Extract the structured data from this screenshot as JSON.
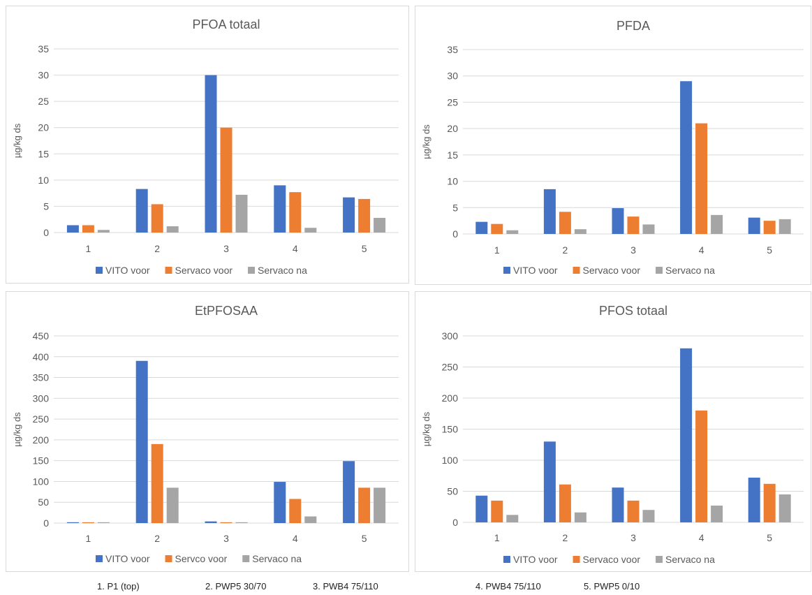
{
  "colors": {
    "vito": "#4472C4",
    "servaco_voor": "#ED7D31",
    "servaco_na": "#A5A5A5",
    "grid": "#d9d9d9",
    "text": "#595959"
  },
  "chart_data": [
    {
      "type": "bar",
      "title": "PFOA totaal",
      "ylabel": "µg/kg ds",
      "xlabel": "",
      "categories": [
        "1",
        "2",
        "3",
        "4",
        "5"
      ],
      "ylim": [
        0,
        35
      ],
      "yticks": [
        0,
        5,
        10,
        15,
        20,
        25,
        30,
        35
      ],
      "grid": true,
      "legend": "bottom",
      "series": [
        {
          "name": "VITO voor",
          "values": [
            1.4,
            8.3,
            30,
            9,
            6.7
          ]
        },
        {
          "name": "Servaco voor",
          "values": [
            1.4,
            5.4,
            20,
            7.7,
            6.4
          ]
        },
        {
          "name": "Servaco na",
          "values": [
            0.5,
            1.2,
            7.2,
            0.9,
            2.8
          ]
        }
      ]
    },
    {
      "type": "bar",
      "title": "PFDA",
      "ylabel": "µg/kg ds",
      "xlabel": "",
      "categories": [
        "1",
        "2",
        "3",
        "4",
        "5"
      ],
      "ylim": [
        0,
        35
      ],
      "yticks": [
        0,
        5,
        10,
        15,
        20,
        25,
        30,
        35
      ],
      "grid": true,
      "legend": "bottom",
      "series": [
        {
          "name": "VITO voor",
          "values": [
            2.3,
            8.5,
            4.9,
            29,
            3.1
          ]
        },
        {
          "name": "Servaco voor",
          "values": [
            1.9,
            4.2,
            3.3,
            21,
            2.5
          ]
        },
        {
          "name": "Servaco na",
          "values": [
            0.7,
            0.9,
            1.8,
            3.6,
            2.8
          ]
        }
      ]
    },
    {
      "type": "bar",
      "title": "EtPFOSAA",
      "ylabel": "µg/kg ds",
      "xlabel": "",
      "categories": [
        "1",
        "2",
        "3",
        "4",
        "5"
      ],
      "ylim": [
        0,
        450
      ],
      "yticks": [
        0,
        50,
        100,
        150,
        200,
        250,
        300,
        350,
        400,
        450
      ],
      "grid": true,
      "legend": "bottom",
      "series": [
        {
          "name": "VITO voor",
          "values": [
            2,
            390,
            4,
            99,
            149
          ]
        },
        {
          "name": "Servco voor",
          "values": [
            2,
            190,
            2,
            58,
            85
          ]
        },
        {
          "name": "Servaco na",
          "values": [
            2,
            85,
            2,
            16,
            85
          ]
        }
      ]
    },
    {
      "type": "bar",
      "title": "PFOS totaal",
      "ylabel": "µg/kg ds",
      "xlabel": "",
      "categories": [
        "1",
        "2",
        "3",
        "4",
        "5"
      ],
      "ylim": [
        0,
        300
      ],
      "yticks": [
        0,
        50,
        100,
        150,
        200,
        250,
        300
      ],
      "grid": true,
      "legend": "bottom",
      "series": [
        {
          "name": "VITO voor",
          "values": [
            43,
            130,
            56,
            280,
            72
          ]
        },
        {
          "name": "Servaco voor",
          "values": [
            35,
            61,
            35,
            180,
            62
          ]
        },
        {
          "name": "Servaco na",
          "values": [
            12,
            16,
            20,
            27,
            45
          ]
        }
      ]
    }
  ],
  "footer": [
    "1. P1 (top)",
    "2. PWP5 30/70",
    "3. PWB4 75/110",
    "4. PWB4 75/110",
    "5. PWP5 0/10"
  ]
}
